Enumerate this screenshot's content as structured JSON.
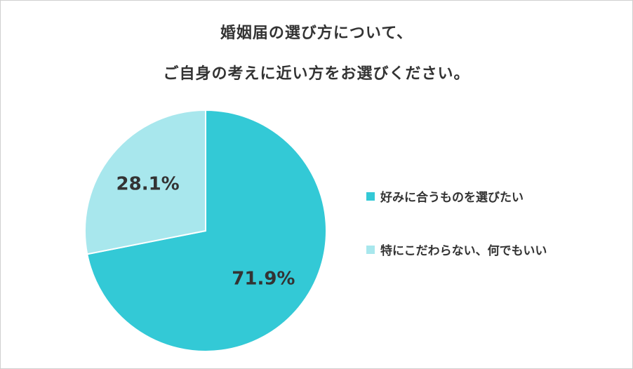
{
  "chart_data": {
    "type": "pie",
    "title": [
      "婚姻届の選び方について、",
      "ご自身の考えに近い方をお選びください。"
    ],
    "slices": [
      {
        "label": "好みに合うものを選びたい",
        "value": 71.9,
        "value_label": "71.9%",
        "color": "#33c9d6"
      },
      {
        "label": "特にこだわらない、何でもいい",
        "value": 28.1,
        "value_label": "28.1%",
        "color": "#a8e7ed"
      }
    ],
    "start": "12 o'clock",
    "direction": "clockwise",
    "legend": "right"
  }
}
